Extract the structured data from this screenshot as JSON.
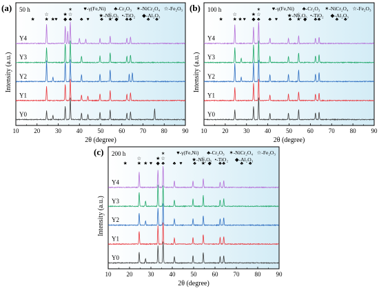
{
  "figure": {
    "shared_legend": [
      {
        "symbol": "♥",
        "label": "-γ(Fe,Ni)"
      },
      {
        "symbol": "♣",
        "label": "-Cr₂O₃"
      },
      {
        "symbol": "✶",
        "label": "-NiCr₂O₄"
      },
      {
        "symbol": "☆",
        "label": "-Fe₂O₃"
      },
      {
        "symbol": "★",
        "label": "-Nb₂O₅"
      },
      {
        "symbol": "•",
        "label": "-TiO₂"
      },
      {
        "symbol": "◆",
        "label": "-Al₂O₃"
      }
    ],
    "series_colors": {
      "Y0": "#3d3d3d",
      "Y1": "#e8373d",
      "Y2": "#2f6fc1",
      "Y3": "#21a86a",
      "Y4": "#b470d8"
    },
    "background_gradient": [
      "#ffffff",
      "#d3ecf6"
    ]
  },
  "chart_data": [
    {
      "type": "line",
      "panel": "(a)",
      "time_label": "50 h",
      "xlabel": "2θ (degree)",
      "ylabel": "Intensity (a.u.)",
      "xlim": [
        10,
        90
      ],
      "xticks": [
        10,
        20,
        30,
        40,
        50,
        60,
        70,
        80,
        90
      ],
      "series": [
        {
          "name": "Y0",
          "peaks": [
            [
              24.5,
              0.4
            ],
            [
              27.5,
              0.2
            ],
            [
              33.3,
              0.6
            ],
            [
              35.7,
              1.0
            ],
            [
              41.0,
              0.3
            ],
            [
              44.0,
              0.25
            ],
            [
              49.7,
              0.35
            ],
            [
              54.5,
              0.45
            ],
            [
              62.4,
              0.3
            ],
            [
              64.1,
              0.35
            ],
            [
              75.5,
              0.5
            ]
          ]
        },
        {
          "name": "Y1",
          "peaks": [
            [
              24.5,
              0.65
            ],
            [
              33.3,
              0.75
            ],
            [
              35.7,
              1.0
            ],
            [
              41.0,
              0.25
            ],
            [
              44.0,
              0.2
            ],
            [
              49.7,
              0.3
            ],
            [
              54.5,
              0.45
            ],
            [
              62.4,
              0.3
            ],
            [
              64.1,
              0.35
            ]
          ]
        },
        {
          "name": "Y2",
          "peaks": [
            [
              24.5,
              0.95
            ],
            [
              27.5,
              0.2
            ],
            [
              33.3,
              0.9
            ],
            [
              35.7,
              1.0
            ],
            [
              41.0,
              0.3
            ],
            [
              49.7,
              0.35
            ],
            [
              54.5,
              0.55
            ],
            [
              63.5,
              0.35
            ],
            [
              65.0,
              0.4
            ]
          ]
        },
        {
          "name": "Y3",
          "peaks": [
            [
              24.5,
              0.7
            ],
            [
              33.3,
              0.85
            ],
            [
              35.7,
              1.0
            ],
            [
              41.0,
              0.3
            ],
            [
              49.7,
              0.3
            ],
            [
              54.5,
              0.45
            ],
            [
              62.4,
              0.3
            ],
            [
              64.1,
              0.35
            ]
          ]
        },
        {
          "name": "Y4",
          "peaks": [
            [
              24.5,
              0.9
            ],
            [
              33.3,
              0.8
            ],
            [
              34.5,
              0.55
            ],
            [
              35.7,
              1.0
            ],
            [
              40.0,
              0.25
            ],
            [
              43.0,
              0.2
            ],
            [
              49.7,
              0.25
            ],
            [
              54.5,
              0.35
            ],
            [
              62.4,
              0.25
            ],
            [
              64.1,
              0.3
            ]
          ]
        }
      ],
      "markers": [
        {
          "x": 18,
          "symbol": "★"
        },
        {
          "x": 24.5,
          "symbol": "★☆"
        },
        {
          "x": 27.5,
          "symbol": "★"
        },
        {
          "x": 29,
          "symbol": "♥"
        },
        {
          "x": 33.3,
          "symbol": "◆★"
        },
        {
          "x": 35.7,
          "symbol": "♣☆✶"
        },
        {
          "x": 41.0,
          "symbol": "♣"
        },
        {
          "x": 44.0,
          "symbol": "♥"
        },
        {
          "x": 50.5,
          "symbol": "♣"
        },
        {
          "x": 54.5,
          "symbol": "★☆"
        },
        {
          "x": 57.5,
          "symbol": "◆"
        },
        {
          "x": 62.4,
          "symbol": "♣"
        },
        {
          "x": 64.1,
          "symbol": "♣"
        },
        {
          "x": 72.5,
          "symbol": "♣"
        },
        {
          "x": 76.5,
          "symbol": "♣"
        }
      ]
    },
    {
      "type": "line",
      "panel": "(b)",
      "time_label": "100 h",
      "xlabel": "2θ (degree)",
      "ylabel": "Intensity (a.u.)",
      "xlim": [
        10,
        90
      ],
      "xticks": [
        10,
        20,
        30,
        40,
        50,
        60,
        70,
        80,
        90
      ],
      "series": [
        {
          "name": "Y0",
          "peaks": [
            [
              24.5,
              0.45
            ],
            [
              33.3,
              0.6
            ],
            [
              35.7,
              1.0
            ],
            [
              41.0,
              0.3
            ],
            [
              49.7,
              0.3
            ],
            [
              54.5,
              0.45
            ],
            [
              62.4,
              0.3
            ],
            [
              64.1,
              0.35
            ]
          ]
        },
        {
          "name": "Y1",
          "peaks": [
            [
              24.5,
              0.6
            ],
            [
              33.3,
              0.8
            ],
            [
              35.7,
              1.0
            ],
            [
              41.0,
              0.25
            ],
            [
              49.7,
              0.3
            ],
            [
              54.5,
              0.4
            ],
            [
              62.4,
              0.3
            ],
            [
              64.1,
              0.35
            ]
          ]
        },
        {
          "name": "Y2",
          "peaks": [
            [
              24.5,
              0.85
            ],
            [
              27.5,
              0.2
            ],
            [
              33.3,
              0.9
            ],
            [
              35.7,
              1.0
            ],
            [
              41.0,
              0.3
            ],
            [
              49.7,
              0.35
            ],
            [
              54.5,
              0.55
            ],
            [
              62.4,
              0.35
            ],
            [
              64.1,
              0.4
            ]
          ]
        },
        {
          "name": "Y3",
          "peaks": [
            [
              24.5,
              0.7
            ],
            [
              27.5,
              0.2
            ],
            [
              33.3,
              0.8
            ],
            [
              35.7,
              1.0
            ],
            [
              41.0,
              0.3
            ],
            [
              49.7,
              0.3
            ],
            [
              54.5,
              0.45
            ],
            [
              62.4,
              0.3
            ],
            [
              64.1,
              0.35
            ]
          ]
        },
        {
          "name": "Y4",
          "peaks": [
            [
              24.5,
              0.85
            ],
            [
              33.3,
              0.75
            ],
            [
              35.7,
              1.0
            ],
            [
              41.0,
              0.25
            ],
            [
              49.7,
              0.25
            ],
            [
              54.5,
              0.35
            ],
            [
              62.4,
              0.25
            ],
            [
              64.1,
              0.3
            ]
          ]
        }
      ],
      "markers": [
        {
          "x": 18,
          "symbol": "★"
        },
        {
          "x": 24.5,
          "symbol": "★☆"
        },
        {
          "x": 27,
          "symbol": "★"
        },
        {
          "x": 29,
          "symbol": "♥"
        },
        {
          "x": 33.3,
          "symbol": "◆★"
        },
        {
          "x": 35.7,
          "symbol": "♣☆✶"
        },
        {
          "x": 41.0,
          "symbol": "♣"
        },
        {
          "x": 44.0,
          "symbol": "♥"
        },
        {
          "x": 50.5,
          "symbol": "♣"
        },
        {
          "x": 54.5,
          "symbol": "★☆"
        },
        {
          "x": 57.5,
          "symbol": "◆"
        },
        {
          "x": 62.4,
          "symbol": "♣"
        },
        {
          "x": 64.1,
          "symbol": "♣"
        },
        {
          "x": 72.5,
          "symbol": "♣"
        },
        {
          "x": 76.5,
          "symbol": "♣"
        }
      ]
    },
    {
      "type": "line",
      "panel": "(c)",
      "time_label": "200 h",
      "xlabel": "2θ (degree)",
      "ylabel": "Intensity (a.u.)",
      "xlim": [
        10,
        90
      ],
      "xticks": [
        10,
        20,
        30,
        40,
        50,
        60,
        70,
        80,
        90
      ],
      "series": [
        {
          "name": "Y0",
          "peaks": [
            [
              24.5,
              0.5
            ],
            [
              27.5,
              0.2
            ],
            [
              33.3,
              0.8
            ],
            [
              35.7,
              1.0
            ],
            [
              41.0,
              0.3
            ],
            [
              49.7,
              0.35
            ],
            [
              54.5,
              0.5
            ],
            [
              62.4,
              0.3
            ],
            [
              64.1,
              0.35
            ]
          ]
        },
        {
          "name": "Y1",
          "peaks": [
            [
              24.5,
              0.6
            ],
            [
              33.3,
              0.85
            ],
            [
              35.7,
              1.0
            ],
            [
              41.0,
              0.3
            ],
            [
              49.7,
              0.3
            ],
            [
              54.5,
              0.45
            ],
            [
              62.4,
              0.3
            ],
            [
              64.1,
              0.35
            ]
          ]
        },
        {
          "name": "Y2",
          "peaks": [
            [
              24.5,
              0.55
            ],
            [
              27.5,
              0.2
            ],
            [
              33.3,
              0.8
            ],
            [
              35.7,
              1.0
            ],
            [
              41.0,
              0.3
            ],
            [
              49.7,
              0.3
            ],
            [
              54.5,
              0.45
            ],
            [
              62.4,
              0.3
            ],
            [
              64.1,
              0.35
            ]
          ]
        },
        {
          "name": "Y3",
          "peaks": [
            [
              24.5,
              0.65
            ],
            [
              27.5,
              0.25
            ],
            [
              33.3,
              1.0
            ],
            [
              35.7,
              0.95
            ],
            [
              41.0,
              0.3
            ],
            [
              49.7,
              0.35
            ],
            [
              54.5,
              0.5
            ],
            [
              62.4,
              0.3
            ],
            [
              64.1,
              0.35
            ]
          ]
        },
        {
          "name": "Y4",
          "peaks": [
            [
              24.5,
              0.7
            ],
            [
              33.3,
              0.8
            ],
            [
              35.7,
              1.0
            ],
            [
              41.0,
              0.3
            ],
            [
              49.7,
              0.3
            ],
            [
              54.5,
              0.4
            ],
            [
              62.4,
              0.25
            ],
            [
              64.1,
              0.3
            ]
          ]
        }
      ],
      "markers": [
        {
          "x": 18,
          "symbol": "★"
        },
        {
          "x": 24.5,
          "symbol": "★☆"
        },
        {
          "x": 27.5,
          "symbol": "★"
        },
        {
          "x": 30,
          "symbol": "♥"
        },
        {
          "x": 33.3,
          "symbol": "◆★"
        },
        {
          "x": 35.7,
          "symbol": "♣☆✶"
        },
        {
          "x": 41.0,
          "symbol": "♣"
        },
        {
          "x": 44.0,
          "symbol": "♥"
        },
        {
          "x": 50.5,
          "symbol": "♣"
        },
        {
          "x": 54.5,
          "symbol": "★☆"
        },
        {
          "x": 57.5,
          "symbol": "◆"
        },
        {
          "x": 62.4,
          "symbol": "♣"
        },
        {
          "x": 64.1,
          "symbol": "♣"
        },
        {
          "x": 72.5,
          "symbol": "♣"
        },
        {
          "x": 76.5,
          "symbol": "♣"
        }
      ]
    }
  ]
}
